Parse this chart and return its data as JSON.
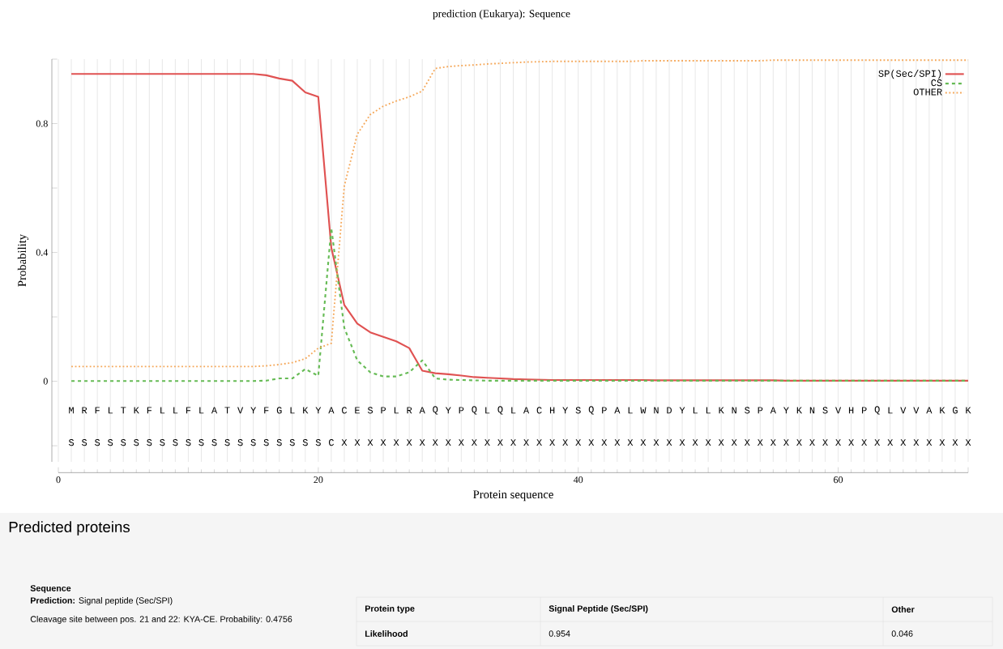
{
  "chart_data": {
    "type": "line",
    "title": "prediction (Eukarya):  Sequence",
    "xlabel": "Protein sequence",
    "ylabel": "Probability",
    "x": [
      1,
      2,
      3,
      4,
      5,
      6,
      7,
      8,
      9,
      10,
      11,
      12,
      13,
      14,
      15,
      16,
      17,
      18,
      19,
      20,
      21,
      22,
      23,
      24,
      25,
      26,
      27,
      28,
      29,
      30,
      31,
      32,
      33,
      34,
      35,
      36,
      37,
      38,
      39,
      40,
      41,
      42,
      43,
      44,
      45,
      46,
      47,
      48,
      49,
      50,
      51,
      52,
      53,
      54,
      55,
      56,
      57,
      58,
      59,
      60,
      61,
      62,
      63,
      64,
      65,
      66,
      67,
      68,
      69,
      70
    ],
    "xlim": [
      0,
      70
    ],
    "ylim": [
      -0.25,
      1.0
    ],
    "xticks": [
      0,
      {
        "value": 10,
        "label": null
      },
      20,
      {
        "value": 30,
        "label": null
      },
      40,
      {
        "value": 50,
        "label": null
      },
      60,
      {
        "value": 70,
        "label": null
      }
    ],
    "yticks": [
      {
        "value": -0.2,
        "label": null
      },
      0,
      {
        "value": 0.2,
        "label": null
      },
      0.4,
      {
        "value": 0.6,
        "label": null
      },
      0.8,
      {
        "value": 1.0,
        "label": null
      }
    ],
    "grid": "x",
    "legend": "top right",
    "series": [
      {
        "name": "SP(Sec/SPI)",
        "color": "#e05252",
        "line_style": "solid",
        "values": [
          0.954,
          0.954,
          0.954,
          0.954,
          0.954,
          0.954,
          0.954,
          0.954,
          0.954,
          0.954,
          0.954,
          0.954,
          0.954,
          0.954,
          0.954,
          0.95,
          0.94,
          0.933,
          0.897,
          0.883,
          0.415,
          0.237,
          0.179,
          0.152,
          0.138,
          0.124,
          0.103,
          0.033,
          0.025,
          0.022,
          0.018,
          0.013,
          0.011,
          0.009,
          0.007,
          0.006,
          0.005,
          0.004,
          0.004,
          0.004,
          0.004,
          0.004,
          0.004,
          0.004,
          0.004,
          0.003,
          0.003,
          0.003,
          0.003,
          0.003,
          0.003,
          0.003,
          0.003,
          0.003,
          0.003,
          0.002,
          0.002,
          0.002,
          0.002,
          0.002,
          0.002,
          0.002,
          0.002,
          0.002,
          0.002,
          0.002,
          0.002,
          0.002,
          0.002,
          0.002
        ]
      },
      {
        "name": "CS",
        "color": "#66bb55",
        "line_style": "dashed",
        "values": [
          0.001,
          0.001,
          0.001,
          0.001,
          0.001,
          0.001,
          0.001,
          0.001,
          0.001,
          0.001,
          0.001,
          0.001,
          0.001,
          0.001,
          0.001,
          0.002,
          0.009,
          0.009,
          0.038,
          0.017,
          0.476,
          0.166,
          0.065,
          0.028,
          0.015,
          0.015,
          0.028,
          0.065,
          0.009,
          0.005,
          0.004,
          0.003,
          0.002,
          0.002,
          0.002,
          0.002,
          0.002,
          0.002,
          0.002,
          0.002,
          0.002,
          0.002,
          0.002,
          0.002,
          0.002,
          0.002,
          0.002,
          0.002,
          0.002,
          0.002,
          0.002,
          0.002,
          0.002,
          0.002,
          0.002,
          0.002,
          0.002,
          0.002,
          0.002,
          0.002,
          0.002,
          0.002,
          0.002,
          0.002,
          0.002,
          0.002,
          0.002,
          0.002,
          0.002,
          0.002
        ]
      },
      {
        "name": "OTHER",
        "color": "#f5a85a",
        "line_style": "dotted",
        "values": [
          0.046,
          0.046,
          0.046,
          0.046,
          0.046,
          0.046,
          0.046,
          0.046,
          0.046,
          0.046,
          0.046,
          0.046,
          0.046,
          0.046,
          0.046,
          0.048,
          0.052,
          0.058,
          0.07,
          0.103,
          0.118,
          0.606,
          0.767,
          0.828,
          0.854,
          0.87,
          0.883,
          0.901,
          0.971,
          0.977,
          0.98,
          0.982,
          0.985,
          0.987,
          0.989,
          0.991,
          0.992,
          0.993,
          0.993,
          0.993,
          0.993,
          0.993,
          0.993,
          0.993,
          0.995,
          0.995,
          0.995,
          0.995,
          0.995,
          0.995,
          0.995,
          0.995,
          0.995,
          0.995,
          0.997,
          0.997,
          0.997,
          0.997,
          0.997,
          0.997,
          0.997,
          0.997,
          0.997,
          0.997,
          0.997,
          0.997,
          0.997,
          0.997,
          0.997,
          0.997
        ]
      }
    ],
    "annotations": [
      "Predicted proteins",
      "Sequence",
      "**Prediction:** Signal peptide (Sec/SPI)",
      "Cleavage site between pos. 21 and 22: KYA-CE. Probability: 0.4756",
      "Protein type",
      "Signal Peptide (Sec/SPI)",
      "Other",
      "Likelihood",
      "0.954",
      "0.046",
      "M",
      "R",
      "F",
      "L",
      "T",
      "K",
      "F",
      "L",
      "L",
      "F",
      "L",
      "A",
      "T",
      "V",
      "Y",
      "F",
      "G",
      "L",
      "K",
      "Y",
      "A",
      "C",
      "E",
      "S",
      "P",
      "L",
      "R",
      "A",
      "Q",
      "Y",
      "P",
      "Q",
      "L",
      "Q",
      "L",
      "A",
      "C",
      "H",
      "Y",
      "S",
      "Q",
      "P",
      "A",
      "L",
      "W",
      "N",
      "D",
      "Y",
      "L",
      "L",
      "K",
      "N",
      "S",
      "P",
      "A",
      "Y",
      "K",
      "N",
      "S",
      "V",
      "H",
      "P",
      "Q",
      "L",
      "V",
      "V",
      "A",
      "K",
      "G",
      "K",
      "S",
      "S",
      "S",
      "S",
      "S",
      "S",
      "S",
      "S",
      "S",
      "S",
      "S",
      "S",
      "S",
      "S",
      "S",
      "S",
      "S",
      "S",
      "S",
      "S",
      "C",
      "X",
      "X",
      "X",
      "X",
      "X",
      "X",
      "X",
      "X",
      "X",
      "X",
      "X",
      "X",
      "X",
      "X",
      "X",
      "X",
      "X",
      "X",
      "X",
      "X",
      "X",
      "X",
      "X",
      "X",
      "X",
      "X",
      "X",
      "X",
      "X",
      "X",
      "X",
      "X",
      "X",
      "X",
      "X",
      "X",
      "X",
      "X",
      "X",
      "X",
      "X",
      "X",
      "X",
      "X",
      "X",
      "X",
      "X",
      "X",
      "X"
    ]
  }
}
